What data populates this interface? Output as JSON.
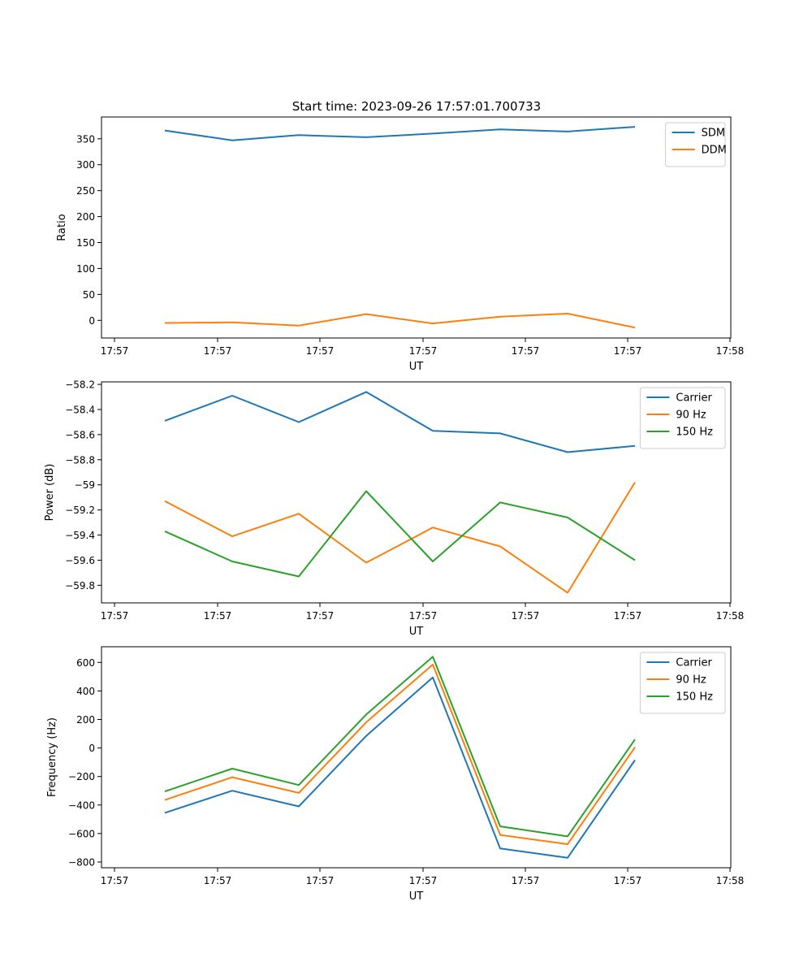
{
  "figure": {
    "title": "Start time: 2023-09-26 17:57:01.700733"
  },
  "chart_data": [
    {
      "type": "line",
      "title": "Start time: 2023-09-26 17:57:01.700733",
      "xlabel": "UT",
      "ylabel": "Ratio",
      "x_tick_labels": [
        "17:57",
        "17:57",
        "17:57",
        "17:57",
        "17:57",
        "17:57",
        "17:57",
        "17:58"
      ],
      "y_ticks": [
        0,
        50,
        100,
        150,
        200,
        250,
        300,
        350
      ],
      "ylim": [
        -34,
        392
      ],
      "x_point_positions": [
        1,
        2,
        3,
        4,
        5,
        6,
        7,
        8
      ],
      "legend_position": "upper right",
      "series": [
        {
          "name": "SDM",
          "color": "#1f77b4",
          "values": [
            366,
            347,
            357,
            353,
            360,
            368,
            364,
            373
          ]
        },
        {
          "name": "DDM",
          "color": "#ff7f0e",
          "values": [
            -5,
            -4,
            -10,
            12,
            -6,
            7,
            13,
            -14
          ]
        }
      ]
    },
    {
      "type": "line",
      "title": "",
      "xlabel": "UT",
      "ylabel": "Power (dB)",
      "x_tick_labels": [
        "17:57",
        "17:57",
        "17:57",
        "17:57",
        "17:57",
        "17:57",
        "17:57",
        "17:58"
      ],
      "y_ticks": [
        -58.2,
        -58.4,
        -58.6,
        -58.8,
        -59.0,
        -59.2,
        -59.4,
        -59.6,
        -59.8
      ],
      "ylim": [
        -59.94,
        -58.18
      ],
      "x_point_positions": [
        1,
        2,
        3,
        4,
        5,
        6,
        7,
        8
      ],
      "legend_position": "upper right",
      "series": [
        {
          "name": "Carrier",
          "color": "#1f77b4",
          "values": [
            -58.49,
            -58.29,
            -58.5,
            -58.26,
            -58.57,
            -58.59,
            -58.74,
            -58.69
          ]
        },
        {
          "name": "90 Hz",
          "color": "#ff7f0e",
          "values": [
            -59.13,
            -59.41,
            -59.23,
            -59.62,
            -59.34,
            -59.49,
            -59.86,
            -58.98
          ]
        },
        {
          "name": "150 Hz",
          "color": "#2ca02c",
          "values": [
            -59.37,
            -59.61,
            -59.73,
            -59.05,
            -59.61,
            -59.14,
            -59.26,
            -59.6
          ]
        }
      ]
    },
    {
      "type": "line",
      "title": "",
      "xlabel": "UT",
      "ylabel": "Frequency (Hz)",
      "x_tick_labels": [
        "17:57",
        "17:57",
        "17:57",
        "17:57",
        "17:57",
        "17:57",
        "17:57",
        "17:58"
      ],
      "y_ticks": [
        600,
        400,
        200,
        0,
        -200,
        -400,
        -600,
        -800
      ],
      "ylim": [
        -840,
        710
      ],
      "x_point_positions": [
        1,
        2,
        3,
        4,
        5,
        6,
        7,
        8
      ],
      "legend_position": "upper right",
      "series": [
        {
          "name": "Carrier",
          "color": "#1f77b4",
          "values": [
            -455,
            -300,
            -410,
            85,
            495,
            -705,
            -770,
            -85
          ]
        },
        {
          "name": "90 Hz",
          "color": "#ff7f0e",
          "values": [
            -365,
            -205,
            -315,
            180,
            585,
            -610,
            -675,
            5
          ]
        },
        {
          "name": "150 Hz",
          "color": "#2ca02c",
          "values": [
            -305,
            -145,
            -260,
            235,
            640,
            -550,
            -620,
            60
          ]
        }
      ]
    }
  ]
}
